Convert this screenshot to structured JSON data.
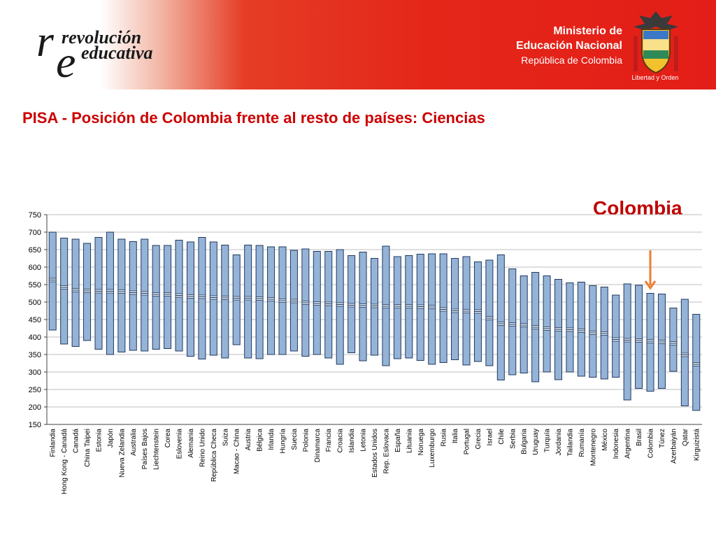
{
  "header": {
    "logo_line1": "revolución",
    "logo_line2": "educativa",
    "ministry_line1": "Ministerio de",
    "ministry_line2": "Educación Nacional",
    "ministry_line3": "República de Colombia",
    "crest_motto": "Libertad y Orden",
    "accent_color": "#e31e18"
  },
  "title": "PISA - Posición de Colombia frente al resto de países: Ciencias",
  "callout": {
    "text": "Colombia",
    "arrow_color": "#ee7d31"
  },
  "chart_data": {
    "type": "boxplot-range",
    "title": "",
    "xlabel": "",
    "ylabel": "",
    "ylim": [
      150,
      750
    ],
    "yticks": [
      150,
      200,
      250,
      300,
      350,
      400,
      450,
      500,
      550,
      600,
      650,
      700,
      750
    ],
    "grid": true,
    "box_color": "#95b3d7",
    "highlight": "Colombia",
    "countries": [
      {
        "name": "Finlandia",
        "min": 420,
        "max": 700,
        "mean": 563
      },
      {
        "name": "Hong Kong - Canadá",
        "min": 380,
        "max": 683,
        "mean": 542
      },
      {
        "name": "Canadá",
        "min": 373,
        "max": 680,
        "mean": 534
      },
      {
        "name": "China Taipei",
        "min": 390,
        "max": 668,
        "mean": 532
      },
      {
        "name": "Estonia",
        "min": 365,
        "max": 685,
        "mean": 531
      },
      {
        "name": "Japón",
        "min": 350,
        "max": 700,
        "mean": 531
      },
      {
        "name": "Nueva Zelandia",
        "min": 357,
        "max": 680,
        "mean": 530
      },
      {
        "name": "Australia",
        "min": 362,
        "max": 673,
        "mean": 527
      },
      {
        "name": "Países Bajos",
        "min": 360,
        "max": 680,
        "mean": 525
      },
      {
        "name": "Liechtenstein",
        "min": 365,
        "max": 662,
        "mean": 522
      },
      {
        "name": "Corea",
        "min": 367,
        "max": 662,
        "mean": 522
      },
      {
        "name": "Eslovenia",
        "min": 360,
        "max": 677,
        "mean": 519
      },
      {
        "name": "Alemania",
        "min": 345,
        "max": 672,
        "mean": 516
      },
      {
        "name": "Reino Unido",
        "min": 337,
        "max": 685,
        "mean": 515
      },
      {
        "name": "República Checa",
        "min": 348,
        "max": 672,
        "mean": 513
      },
      {
        "name": "Suiza",
        "min": 340,
        "max": 663,
        "mean": 512
      },
      {
        "name": "Macao - China",
        "min": 378,
        "max": 635,
        "mean": 511
      },
      {
        "name": "Austria",
        "min": 340,
        "max": 663,
        "mean": 511
      },
      {
        "name": "Bélgica",
        "min": 338,
        "max": 662,
        "mean": 510
      },
      {
        "name": "Irlanda",
        "min": 350,
        "max": 658,
        "mean": 508
      },
      {
        "name": "Hungría",
        "min": 350,
        "max": 658,
        "mean": 504
      },
      {
        "name": "Suecia",
        "min": 360,
        "max": 648,
        "mean": 503
      },
      {
        "name": "Polonia",
        "min": 345,
        "max": 652,
        "mean": 498
      },
      {
        "name": "Dinamarca",
        "min": 350,
        "max": 645,
        "mean": 496
      },
      {
        "name": "Francia",
        "min": 340,
        "max": 645,
        "mean": 495
      },
      {
        "name": "Croacia",
        "min": 322,
        "max": 650,
        "mean": 493
      },
      {
        "name": "Islandia",
        "min": 355,
        "max": 633,
        "mean": 491
      },
      {
        "name": "Letonia",
        "min": 332,
        "max": 643,
        "mean": 490
      },
      {
        "name": "Estados Unidos",
        "min": 348,
        "max": 625,
        "mean": 489
      },
      {
        "name": "Rep. Eslovaca",
        "min": 318,
        "max": 660,
        "mean": 488
      },
      {
        "name": "España",
        "min": 338,
        "max": 630,
        "mean": 488
      },
      {
        "name": "Lituania",
        "min": 340,
        "max": 633,
        "mean": 488
      },
      {
        "name": "Noruega",
        "min": 333,
        "max": 637,
        "mean": 487
      },
      {
        "name": "Luxemburgo",
        "min": 322,
        "max": 638,
        "mean": 486
      },
      {
        "name": "Rusia",
        "min": 327,
        "max": 638,
        "mean": 479
      },
      {
        "name": "Italia",
        "min": 335,
        "max": 625,
        "mean": 475
      },
      {
        "name": "Portugal",
        "min": 320,
        "max": 630,
        "mean": 474
      },
      {
        "name": "Grecia",
        "min": 330,
        "max": 615,
        "mean": 473
      },
      {
        "name": "Israel",
        "min": 318,
        "max": 620,
        "mean": 454
      },
      {
        "name": "Chile",
        "min": 277,
        "max": 635,
        "mean": 438
      },
      {
        "name": "Serbia",
        "min": 292,
        "max": 595,
        "mean": 436
      },
      {
        "name": "Bulgaria",
        "min": 297,
        "max": 575,
        "mean": 434
      },
      {
        "name": "Uruguay",
        "min": 272,
        "max": 585,
        "mean": 428
      },
      {
        "name": "Turquía",
        "min": 300,
        "max": 575,
        "mean": 424
      },
      {
        "name": "Jordania",
        "min": 278,
        "max": 565,
        "mean": 422
      },
      {
        "name": "Tailandia",
        "min": 300,
        "max": 555,
        "mean": 421
      },
      {
        "name": "Rumanía",
        "min": 288,
        "max": 557,
        "mean": 418
      },
      {
        "name": "Montenegro",
        "min": 285,
        "max": 547,
        "mean": 412
      },
      {
        "name": "México",
        "min": 280,
        "max": 543,
        "mean": 410
      },
      {
        "name": "Indonesia",
        "min": 285,
        "max": 520,
        "mean": 393
      },
      {
        "name": "Argentina",
        "min": 220,
        "max": 552,
        "mean": 391
      },
      {
        "name": "Brasil",
        "min": 253,
        "max": 548,
        "mean": 390
      },
      {
        "name": "Colombia",
        "min": 245,
        "max": 525,
        "mean": 388
      },
      {
        "name": "Túnez",
        "min": 253,
        "max": 523,
        "mean": 386
      },
      {
        "name": "Azerbaiyán",
        "min": 302,
        "max": 483,
        "mean": 382
      },
      {
        "name": "Qatar",
        "min": 203,
        "max": 508,
        "mean": 349
      },
      {
        "name": "Kirguizistá",
        "min": 190,
        "max": 465,
        "mean": 322
      }
    ]
  }
}
